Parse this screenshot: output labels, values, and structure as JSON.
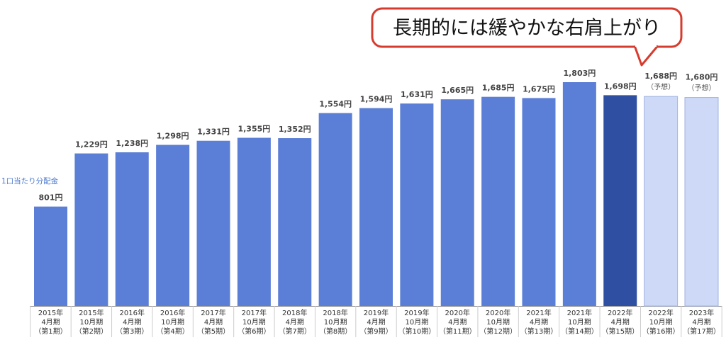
{
  "chart_data": {
    "type": "bar",
    "annotation": "長期的には緩やかな右肩上がり",
    "y_label": "1口当たり分配金",
    "categories": [
      [
        "2015年",
        "4月期",
        "（第1期）"
      ],
      [
        "2015年",
        "10月期",
        "（第2期）"
      ],
      [
        "2016年",
        "4月期",
        "（第3期）"
      ],
      [
        "2016年",
        "10月期",
        "（第4期）"
      ],
      [
        "2017年",
        "4月期",
        "（第5期）"
      ],
      [
        "2017年",
        "10月期",
        "（第6期）"
      ],
      [
        "2018年",
        "4月期",
        "（第7期）"
      ],
      [
        "2018年",
        "10月期",
        "（第8期）"
      ],
      [
        "2019年",
        "4月期",
        "（第9期）"
      ],
      [
        "2019年",
        "10月期",
        "（第10期）"
      ],
      [
        "2020年",
        "4月期",
        "（第11期）"
      ],
      [
        "2020年",
        "10月期",
        "（第12期）"
      ],
      [
        "2021年",
        "4月期",
        "（第13期）"
      ],
      [
        "2021年",
        "10月期",
        "（第14期）"
      ],
      [
        "2022年",
        "4月期",
        "（第15期）"
      ],
      [
        "2022年",
        "10月期",
        "（第16期）"
      ],
      [
        "2023年",
        "4月期",
        "（第17期）"
      ]
    ],
    "values": [
      801,
      1229,
      1238,
      1298,
      1331,
      1355,
      1352,
      1554,
      1594,
      1631,
      1665,
      1685,
      1675,
      1803,
      1698,
      1688,
      1680
    ],
    "value_labels": [
      "801円",
      "1,229円",
      "1,238円",
      "1,298円",
      "1,331円",
      "1,355円",
      "1,352円",
      "1,554円",
      "1,594円",
      "1,631円",
      "1,665円",
      "1,685円",
      "1,675円",
      "1,803円",
      "1,698円",
      "1,688円",
      "1,680円"
    ],
    "notes": [
      null,
      null,
      null,
      null,
      null,
      null,
      null,
      null,
      null,
      null,
      null,
      null,
      null,
      null,
      null,
      "（予想）",
      "（予想）"
    ],
    "colors": [
      "#5b7fd6",
      "#5b7fd6",
      "#5b7fd6",
      "#5b7fd6",
      "#5b7fd6",
      "#5b7fd6",
      "#5b7fd6",
      "#5b7fd6",
      "#5b7fd6",
      "#5b7fd6",
      "#5b7fd6",
      "#5b7fd6",
      "#5b7fd6",
      "#5b7fd6",
      "#2f4fa3",
      "#cdd9f7",
      "#cdd9f7"
    ]
  }
}
